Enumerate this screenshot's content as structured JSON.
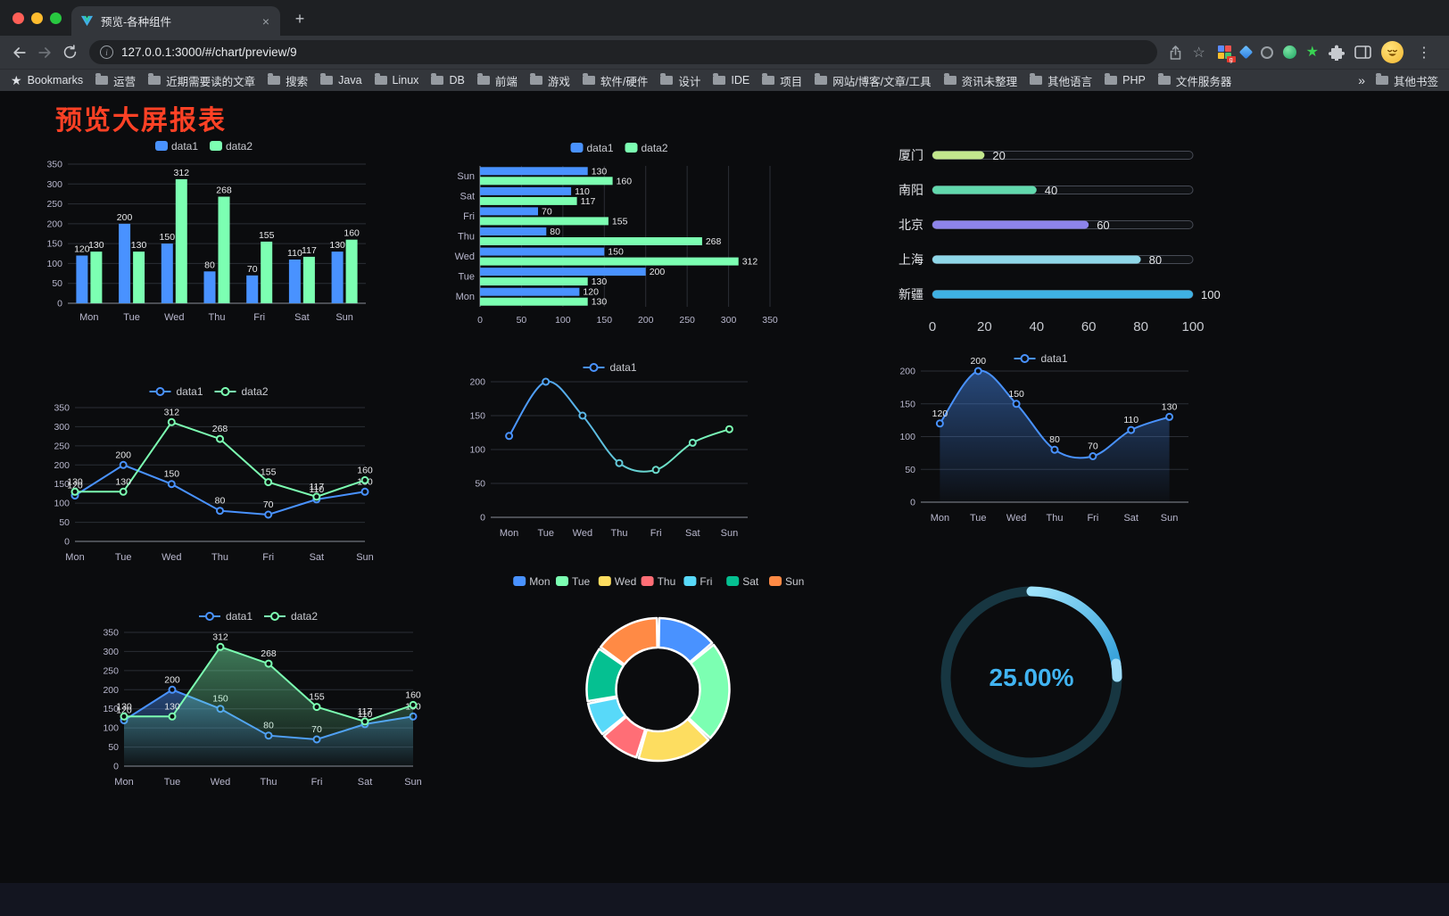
{
  "browser": {
    "traffic_lights": [
      "#ff5f57",
      "#febc2e",
      "#28c840"
    ],
    "tab": {
      "title": "预览-各种组件",
      "close": "×",
      "new_tab": "+"
    },
    "address": {
      "url": "127.0.0.1:3000/#/chart/preview/9"
    },
    "bookmarks_bar": {
      "bookmarks_label": "Bookmarks",
      "folders": [
        "运营",
        "近期需要读的文章",
        "搜索",
        "Java",
        "Linux",
        "DB",
        "前端",
        "游戏",
        "软件/硬件",
        "设计",
        "IDE",
        "项目",
        "网站/博客/文章/工具",
        "资讯未整理",
        "其他语言",
        "PHP",
        "文件服务器"
      ],
      "overflow": "»",
      "other_bookmarks": "其他书签"
    }
  },
  "page": {
    "title": "预览大屏报表"
  },
  "chart_data": [
    {
      "id": "grouped-bar",
      "type": "bar",
      "categories": [
        "Mon",
        "Tue",
        "Wed",
        "Thu",
        "Fri",
        "Sat",
        "Sun"
      ],
      "series": [
        {
          "name": "data1",
          "color": "#4992ff",
          "values": [
            120,
            200,
            150,
            80,
            70,
            110,
            130
          ]
        },
        {
          "name": "data2",
          "color": "#7cffb2",
          "values": [
            130,
            130,
            312,
            268,
            155,
            117,
            160
          ]
        }
      ],
      "ylim": [
        0,
        350
      ],
      "ystep": 50
    },
    {
      "id": "grouped-horizontal-bar",
      "type": "hbar",
      "categories": [
        "Mon",
        "Tue",
        "Wed",
        "Thu",
        "Fri",
        "Sat",
        "Sun"
      ],
      "series": [
        {
          "name": "data1",
          "color": "#4992ff",
          "values": [
            120,
            200,
            150,
            80,
            70,
            110,
            130
          ]
        },
        {
          "name": "data2",
          "color": "#7cffb2",
          "values": [
            130,
            130,
            312,
            268,
            155,
            117,
            160
          ]
        }
      ],
      "xlim": [
        0,
        350
      ],
      "xstep": 50
    },
    {
      "id": "city-progress-bars",
      "type": "progress",
      "max": 100,
      "rows": [
        {
          "label": "厦门",
          "value": 20,
          "color": "#c3e88d"
        },
        {
          "label": "南阳",
          "value": 40,
          "color": "#62d9ad"
        },
        {
          "label": "北京",
          "value": 60,
          "color": "#8d84ea"
        },
        {
          "label": "上海",
          "value": 80,
          "color": "#8fd7e8"
        },
        {
          "label": "新疆",
          "value": 100,
          "color": "#3fb1e3"
        }
      ],
      "axis": [
        0,
        20,
        40,
        60,
        80,
        100
      ]
    },
    {
      "id": "two-series-line",
      "type": "line",
      "smooth": false,
      "band": false,
      "categories": [
        "Mon",
        "Tue",
        "Wed",
        "Thu",
        "Fri",
        "Sat",
        "Sun"
      ],
      "series": [
        {
          "name": "data1",
          "color": "#4992ff",
          "values": [
            120,
            200,
            150,
            80,
            70,
            110,
            130
          ],
          "labels": true
        },
        {
          "name": "data2",
          "color": "#7cffb2",
          "values": [
            130,
            130,
            312,
            268,
            155,
            117,
            160
          ],
          "labels": true
        }
      ],
      "ylim": [
        0,
        350
      ],
      "ystep": 50
    },
    {
      "id": "gradient-line",
      "type": "line",
      "smooth": true,
      "band": true,
      "categories": [
        "Mon",
        "Tue",
        "Wed",
        "Thu",
        "Fri",
        "Sat",
        "Sun"
      ],
      "series": [
        {
          "name": "data1",
          "gradient": [
            "#4992ff",
            "#7cffb2"
          ],
          "values": [
            120,
            200,
            150,
            80,
            70,
            110,
            130
          ],
          "labels": false
        }
      ],
      "ylim": [
        0,
        200
      ],
      "ystep": 50
    },
    {
      "id": "area-line",
      "type": "line",
      "smooth": true,
      "band": true,
      "categories": [
        "Mon",
        "Tue",
        "Wed",
        "Thu",
        "Fri",
        "Sat",
        "Sun"
      ],
      "series": [
        {
          "name": "data1",
          "color": "#4992ff",
          "values": [
            120,
            200,
            150,
            80,
            70,
            110,
            130
          ],
          "labels": true,
          "area": true
        }
      ],
      "ylim": [
        0,
        200
      ],
      "ystep": 50
    },
    {
      "id": "two-series-area-line",
      "type": "line",
      "smooth": false,
      "band": false,
      "categories": [
        "Mon",
        "Tue",
        "Wed",
        "Thu",
        "Fri",
        "Sat",
        "Sun"
      ],
      "series": [
        {
          "name": "data1",
          "color": "#4992ff",
          "values": [
            120,
            200,
            150,
            80,
            70,
            110,
            130
          ],
          "labels": true,
          "area": true
        },
        {
          "name": "data2",
          "color": "#7cffb2",
          "values": [
            130,
            130,
            312,
            268,
            155,
            117,
            160
          ],
          "labels": true,
          "area": true
        }
      ],
      "ylim": [
        0,
        350
      ],
      "ystep": 50
    },
    {
      "id": "weekday-donut",
      "type": "pie",
      "inner": 47,
      "outer": 80,
      "slices": [
        {
          "label": "Mon",
          "value": 120,
          "color": "#4992ff"
        },
        {
          "label": "Tue",
          "value": 200,
          "color": "#7cffb2"
        },
        {
          "label": "Wed",
          "value": 150,
          "color": "#fddd60"
        },
        {
          "label": "Thu",
          "value": 80,
          "color": "#ff6e76"
        },
        {
          "label": "Fri",
          "value": 70,
          "color": "#58d9f9"
        },
        {
          "label": "Sat",
          "value": 110,
          "color": "#05c091"
        },
        {
          "label": "Sun",
          "value": 130,
          "color": "#ff8a45"
        }
      ]
    },
    {
      "id": "percent-gauge",
      "type": "gauge",
      "value": 25,
      "max": 100,
      "display": "25.00%",
      "color": "#41b4f2",
      "ring_color": "#173641",
      "arc_colors": [
        "#9fe3fb",
        "#2b9ad6"
      ],
      "cap_color": "#9edcf8"
    }
  ]
}
